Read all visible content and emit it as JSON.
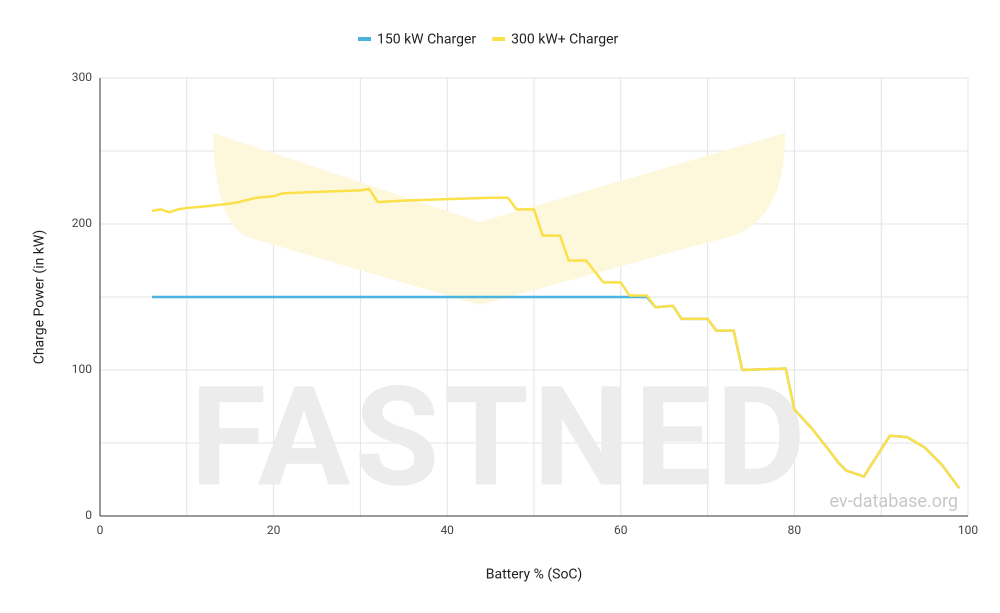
{
  "chart_data": {
    "type": "line",
    "x_label": "Battery % (SoC)",
    "y_label": "Charge Power (in kW)",
    "watermark": "FASTNED",
    "source": "ev-database.org",
    "xlim": [
      0,
      100
    ],
    "xticks": [
      0,
      20,
      40,
      60,
      80,
      100
    ],
    "x_gridlines": [
      0,
      10,
      20,
      30,
      40,
      50,
      60,
      70,
      80,
      90,
      100
    ],
    "ylim": [
      0,
      300
    ],
    "yticks": [
      0,
      100,
      200,
      300
    ],
    "y_gridlines": [
      0,
      50,
      100,
      150,
      200,
      250,
      300
    ],
    "grid": true,
    "legend": "top",
    "series": [
      {
        "name": "150 kW Charger",
        "color": "#4ab4de",
        "x": [
          6,
          63,
          64,
          66,
          67,
          70,
          71,
          73,
          74,
          79,
          80,
          82,
          84,
          85,
          86,
          88,
          91,
          93,
          95,
          97,
          99
        ],
        "values": [
          150,
          150,
          143,
          144,
          135,
          135,
          127,
          127,
          100,
          101,
          73,
          60,
          45,
          37,
          31,
          27,
          55,
          54,
          47,
          35,
          19
        ]
      },
      {
        "name": "300 kW+ Charger",
        "color": "#fbe04a",
        "x": [
          6,
          7,
          8,
          9,
          10,
          12,
          15,
          16,
          18,
          20,
          21,
          25,
          30,
          31,
          32,
          35,
          40,
          45,
          47,
          48,
          50,
          51,
          53,
          54,
          56,
          58,
          60,
          61,
          63,
          64,
          66,
          67,
          70,
          71,
          73,
          74,
          79,
          80,
          82,
          84,
          85,
          86,
          88,
          91,
          93,
          95,
          97,
          99
        ],
        "values": [
          209,
          210,
          208,
          210,
          211,
          212,
          214,
          215,
          218,
          219,
          221,
          222,
          223,
          224,
          215,
          216,
          217,
          218,
          218,
          210,
          210,
          192,
          192,
          175,
          175,
          160,
          160,
          151,
          151,
          143,
          144,
          135,
          135,
          127,
          127,
          100,
          101,
          73,
          60,
          45,
          37,
          31,
          27,
          55,
          54,
          47,
          35,
          19
        ]
      }
    ]
  }
}
